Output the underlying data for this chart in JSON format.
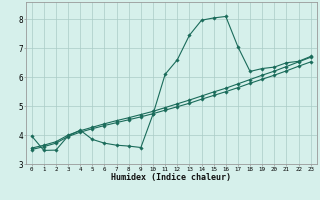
{
  "xlabel": "Humidex (Indice chaleur)",
  "xlim": [
    -0.5,
    23.5
  ],
  "ylim": [
    3.0,
    8.6
  ],
  "yticks": [
    3,
    4,
    5,
    6,
    7,
    8
  ],
  "xticks": [
    0,
    1,
    2,
    3,
    4,
    5,
    6,
    7,
    8,
    9,
    10,
    11,
    12,
    13,
    14,
    15,
    16,
    17,
    18,
    19,
    20,
    21,
    22,
    23
  ],
  "bg_color": "#d6f0eb",
  "grid_color": "#aaccc6",
  "line_color": "#1a6b5a",
  "line1_x": [
    0,
    1,
    2,
    3,
    4,
    5,
    6,
    7,
    8,
    9,
    10,
    11,
    12,
    13,
    14,
    15,
    16,
    17,
    18,
    19,
    20,
    21,
    22,
    23
  ],
  "line1_y": [
    3.97,
    3.47,
    3.48,
    3.97,
    4.17,
    3.85,
    3.72,
    3.65,
    3.62,
    3.57,
    4.72,
    6.1,
    6.6,
    7.45,
    7.97,
    8.05,
    8.1,
    7.05,
    6.2,
    6.3,
    6.35,
    6.5,
    6.55,
    6.72
  ],
  "line2_x": [
    0,
    1,
    2,
    3,
    4,
    5,
    6,
    7,
    8,
    9,
    10,
    11,
    12,
    13,
    14,
    15,
    16,
    17,
    18,
    19,
    20,
    21,
    22,
    23
  ],
  "line2_y": [
    3.5,
    3.6,
    3.72,
    3.95,
    4.1,
    4.22,
    4.33,
    4.43,
    4.53,
    4.63,
    4.74,
    4.86,
    4.98,
    5.1,
    5.24,
    5.37,
    5.5,
    5.64,
    5.79,
    5.93,
    6.07,
    6.22,
    6.38,
    6.53
  ],
  "line3_x": [
    0,
    1,
    2,
    3,
    4,
    5,
    6,
    7,
    8,
    9,
    10,
    11,
    12,
    13,
    14,
    15,
    16,
    17,
    18,
    19,
    20,
    21,
    22,
    23
  ],
  "line3_y": [
    3.55,
    3.65,
    3.77,
    4.0,
    4.15,
    4.27,
    4.39,
    4.5,
    4.6,
    4.71,
    4.82,
    4.95,
    5.08,
    5.21,
    5.35,
    5.49,
    5.62,
    5.77,
    5.92,
    6.07,
    6.21,
    6.37,
    6.53,
    6.69
  ]
}
